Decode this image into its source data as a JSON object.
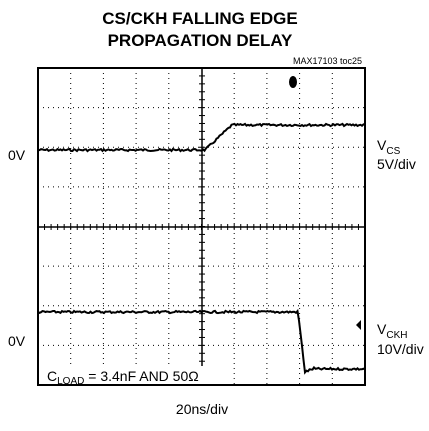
{
  "title": [
    "CS/CKH FALLING EDGE",
    "PROPAGATION DELAY"
  ],
  "figure_id": "MAX17103 toc25",
  "channels": [
    {
      "zero_label": "0V",
      "name": {
        "main": "V",
        "sub": "CS"
      },
      "scale": "5V/div"
    },
    {
      "zero_label": "0V",
      "name": {
        "main": "V",
        "sub": "CKH"
      },
      "scale": "10V/div"
    }
  ],
  "annotation": {
    "pre": "C",
    "sub": "LOAD",
    "post": " = 3.4nF AND 50Ω"
  },
  "time_scale": "20ns/div"
}
